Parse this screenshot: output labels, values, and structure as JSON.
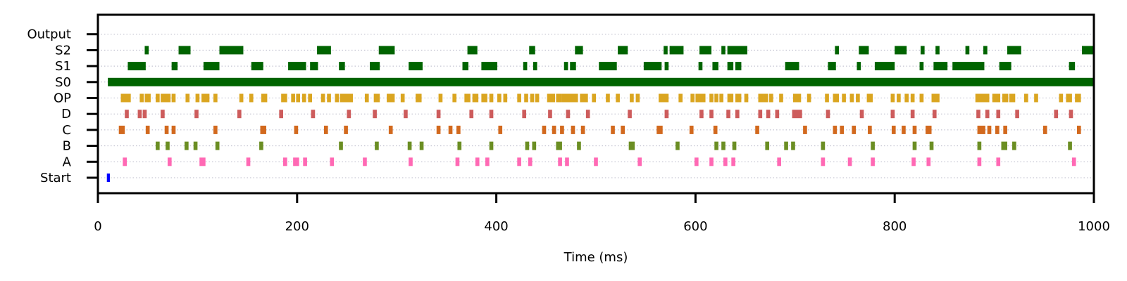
{
  "chart_data": {
    "type": "raster",
    "title": "",
    "xlabel": "Time (ms)",
    "ylabel": "",
    "xlim": [
      0,
      1000
    ],
    "xticks": [
      0,
      200,
      400,
      600,
      800,
      1000
    ],
    "grid": "horizontal dotted",
    "rows": [
      {
        "name": "Start",
        "color": "#0000ff",
        "events": [
          [
            9,
            3
          ]
        ]
      },
      {
        "name": "A",
        "color": "#ff69b4",
        "events": [
          [
            25,
            4
          ],
          [
            70,
            4
          ],
          [
            102,
            6
          ],
          [
            149,
            4
          ],
          [
            186,
            4
          ],
          [
            196,
            6
          ],
          [
            206,
            4
          ],
          [
            233,
            4
          ],
          [
            266,
            4
          ],
          [
            312,
            4
          ],
          [
            359,
            4
          ],
          [
            379,
            4
          ],
          [
            389,
            4
          ],
          [
            421,
            4
          ],
          [
            432,
            4
          ],
          [
            462,
            4
          ],
          [
            469,
            4
          ],
          [
            498,
            4
          ],
          [
            542,
            4
          ],
          [
            599,
            4
          ],
          [
            614,
            4
          ],
          [
            628,
            4
          ],
          [
            636,
            4
          ],
          [
            682,
            4
          ],
          [
            726,
            4
          ],
          [
            753,
            4
          ],
          [
            776,
            4
          ],
          [
            817,
            4
          ],
          [
            832,
            4
          ],
          [
            883,
            4
          ],
          [
            902,
            4
          ],
          [
            978,
            4
          ]
        ]
      },
      {
        "name": "B",
        "color": "#6b8e23",
        "events": [
          [
            58,
            4
          ],
          [
            68,
            4
          ],
          [
            87,
            4
          ],
          [
            96,
            4
          ],
          [
            118,
            4
          ],
          [
            162,
            4
          ],
          [
            242,
            4
          ],
          [
            278,
            4
          ],
          [
            311,
            4
          ],
          [
            323,
            4
          ],
          [
            361,
            4
          ],
          [
            393,
            4
          ],
          [
            429,
            4
          ],
          [
            436,
            4
          ],
          [
            460,
            6
          ],
          [
            481,
            4
          ],
          [
            533,
            6
          ],
          [
            580,
            4
          ],
          [
            619,
            4
          ],
          [
            626,
            4
          ],
          [
            637,
            4
          ],
          [
            670,
            4
          ],
          [
            689,
            4
          ],
          [
            696,
            4
          ],
          [
            726,
            4
          ],
          [
            776,
            4
          ],
          [
            818,
            4
          ],
          [
            835,
            4
          ],
          [
            883,
            4
          ],
          [
            907,
            6
          ],
          [
            918,
            4
          ],
          [
            974,
            4
          ]
        ]
      },
      {
        "name": "C",
        "color": "#d2691e",
        "events": [
          [
            21,
            6
          ],
          [
            48,
            4
          ],
          [
            67,
            4
          ],
          [
            74,
            4
          ],
          [
            116,
            4
          ],
          [
            163,
            6
          ],
          [
            197,
            4
          ],
          [
            227,
            4
          ],
          [
            247,
            4
          ],
          [
            292,
            4
          ],
          [
            340,
            4
          ],
          [
            352,
            4
          ],
          [
            360,
            4
          ],
          [
            402,
            4
          ],
          [
            446,
            4
          ],
          [
            456,
            4
          ],
          [
            464,
            4
          ],
          [
            475,
            4
          ],
          [
            485,
            4
          ],
          [
            515,
            4
          ],
          [
            525,
            4
          ],
          [
            561,
            6
          ],
          [
            594,
            4
          ],
          [
            618,
            4
          ],
          [
            660,
            4
          ],
          [
            708,
            4
          ],
          [
            738,
            4
          ],
          [
            745,
            4
          ],
          [
            757,
            4
          ],
          [
            773,
            4
          ],
          [
            797,
            4
          ],
          [
            807,
            4
          ],
          [
            818,
            4
          ],
          [
            831,
            6
          ],
          [
            883,
            8
          ],
          [
            893,
            4
          ],
          [
            901,
            4
          ],
          [
            909,
            4
          ],
          [
            949,
            4
          ],
          [
            983,
            4
          ]
        ]
      },
      {
        "name": "D",
        "color": "#cd5c5c",
        "events": [
          [
            27,
            4
          ],
          [
            40,
            4
          ],
          [
            45,
            4
          ],
          [
            63,
            4
          ],
          [
            97,
            4
          ],
          [
            140,
            4
          ],
          [
            182,
            4
          ],
          [
            214,
            4
          ],
          [
            250,
            4
          ],
          [
            276,
            4
          ],
          [
            307,
            4
          ],
          [
            340,
            4
          ],
          [
            373,
            4
          ],
          [
            393,
            4
          ],
          [
            426,
            4
          ],
          [
            452,
            4
          ],
          [
            470,
            4
          ],
          [
            490,
            4
          ],
          [
            532,
            4
          ],
          [
            569,
            4
          ],
          [
            604,
            4
          ],
          [
            614,
            4
          ],
          [
            631,
            4
          ],
          [
            640,
            4
          ],
          [
            663,
            4
          ],
          [
            671,
            4
          ],
          [
            680,
            4
          ],
          [
            697,
            10
          ],
          [
            731,
            4
          ],
          [
            765,
            4
          ],
          [
            796,
            4
          ],
          [
            816,
            4
          ],
          [
            838,
            4
          ],
          [
            882,
            4
          ],
          [
            891,
            4
          ],
          [
            902,
            4
          ],
          [
            921,
            4
          ],
          [
            960,
            4
          ],
          [
            975,
            4
          ]
        ]
      },
      {
        "name": "OP",
        "color": "#daa520",
        "events": [
          [
            23,
            10
          ],
          [
            42,
            4
          ],
          [
            47,
            6
          ],
          [
            58,
            4
          ],
          [
            63,
            10
          ],
          [
            74,
            4
          ],
          [
            88,
            4
          ],
          [
            98,
            4
          ],
          [
            104,
            8
          ],
          [
            116,
            4
          ],
          [
            142,
            4
          ],
          [
            152,
            4
          ],
          [
            164,
            6
          ],
          [
            184,
            6
          ],
          [
            194,
            4
          ],
          [
            199,
            4
          ],
          [
            205,
            4
          ],
          [
            211,
            4
          ],
          [
            224,
            4
          ],
          [
            230,
            4
          ],
          [
            238,
            4
          ],
          [
            243,
            4
          ],
          [
            246,
            10
          ],
          [
            268,
            4
          ],
          [
            277,
            6
          ],
          [
            290,
            8
          ],
          [
            304,
            4
          ],
          [
            319,
            6
          ],
          [
            342,
            4
          ],
          [
            356,
            4
          ],
          [
            368,
            6
          ],
          [
            376,
            6
          ],
          [
            385,
            6
          ],
          [
            393,
            4
          ],
          [
            401,
            4
          ],
          [
            407,
            4
          ],
          [
            421,
            4
          ],
          [
            428,
            4
          ],
          [
            434,
            4
          ],
          [
            439,
            4
          ],
          [
            451,
            8
          ],
          [
            460,
            6
          ],
          [
            466,
            16
          ],
          [
            484,
            8
          ],
          [
            496,
            4
          ],
          [
            510,
            4
          ],
          [
            520,
            4
          ],
          [
            534,
            4
          ],
          [
            540,
            4
          ],
          [
            563,
            10
          ],
          [
            583,
            4
          ],
          [
            595,
            4
          ],
          [
            600,
            10
          ],
          [
            614,
            4
          ],
          [
            619,
            4
          ],
          [
            624,
            4
          ],
          [
            632,
            6
          ],
          [
            640,
            6
          ],
          [
            649,
            4
          ],
          [
            663,
            6
          ],
          [
            669,
            4
          ],
          [
            674,
            4
          ],
          [
            684,
            4
          ],
          [
            698,
            8
          ],
          [
            712,
            4
          ],
          [
            730,
            4
          ],
          [
            738,
            6
          ],
          [
            747,
            4
          ],
          [
            755,
            4
          ],
          [
            761,
            4
          ],
          [
            772,
            6
          ],
          [
            796,
            4
          ],
          [
            802,
            4
          ],
          [
            810,
            4
          ],
          [
            816,
            4
          ],
          [
            825,
            4
          ],
          [
            837,
            8
          ],
          [
            881,
            14
          ],
          [
            898,
            8
          ],
          [
            908,
            6
          ],
          [
            915,
            6
          ],
          [
            930,
            4
          ],
          [
            940,
            4
          ],
          [
            965,
            4
          ],
          [
            972,
            6
          ],
          [
            981,
            6
          ]
        ]
      },
      {
        "name": "S0",
        "color": "#006400",
        "events": [
          [
            10,
            990
          ]
        ]
      },
      {
        "name": "S1",
        "color": "#006400",
        "events": [
          [
            30,
            18
          ],
          [
            74,
            6
          ],
          [
            106,
            16
          ],
          [
            154,
            12
          ],
          [
            191,
            18
          ],
          [
            213,
            8
          ],
          [
            242,
            6
          ],
          [
            273,
            10
          ],
          [
            312,
            14
          ],
          [
            366,
            6
          ],
          [
            385,
            16
          ],
          [
            427,
            4
          ],
          [
            437,
            4
          ],
          [
            468,
            4
          ],
          [
            474,
            6
          ],
          [
            503,
            18
          ],
          [
            548,
            18
          ],
          [
            569,
            4
          ],
          [
            603,
            4
          ],
          [
            617,
            6
          ],
          [
            632,
            6
          ],
          [
            640,
            6
          ],
          [
            690,
            14
          ],
          [
            733,
            8
          ],
          [
            762,
            4
          ],
          [
            780,
            20
          ],
          [
            825,
            4
          ],
          [
            839,
            14
          ],
          [
            858,
            32
          ],
          [
            905,
            12
          ],
          [
            975,
            6
          ]
        ]
      },
      {
        "name": "S2",
        "color": "#006400",
        "events": [
          [
            47,
            4
          ],
          [
            81,
            12
          ],
          [
            122,
            24
          ],
          [
            220,
            14
          ],
          [
            282,
            16
          ],
          [
            371,
            10
          ],
          [
            433,
            6
          ],
          [
            479,
            8
          ],
          [
            522,
            10
          ],
          [
            568,
            4
          ],
          [
            574,
            14
          ],
          [
            604,
            12
          ],
          [
            626,
            4
          ],
          [
            632,
            20
          ],
          [
            740,
            4
          ],
          [
            764,
            10
          ],
          [
            800,
            12
          ],
          [
            826,
            4
          ],
          [
            841,
            4
          ],
          [
            871,
            4
          ],
          [
            889,
            4
          ],
          [
            913,
            14
          ],
          [
            988,
            12
          ]
        ]
      },
      {
        "name": "Output",
        "color": "#006400",
        "events": []
      }
    ]
  }
}
